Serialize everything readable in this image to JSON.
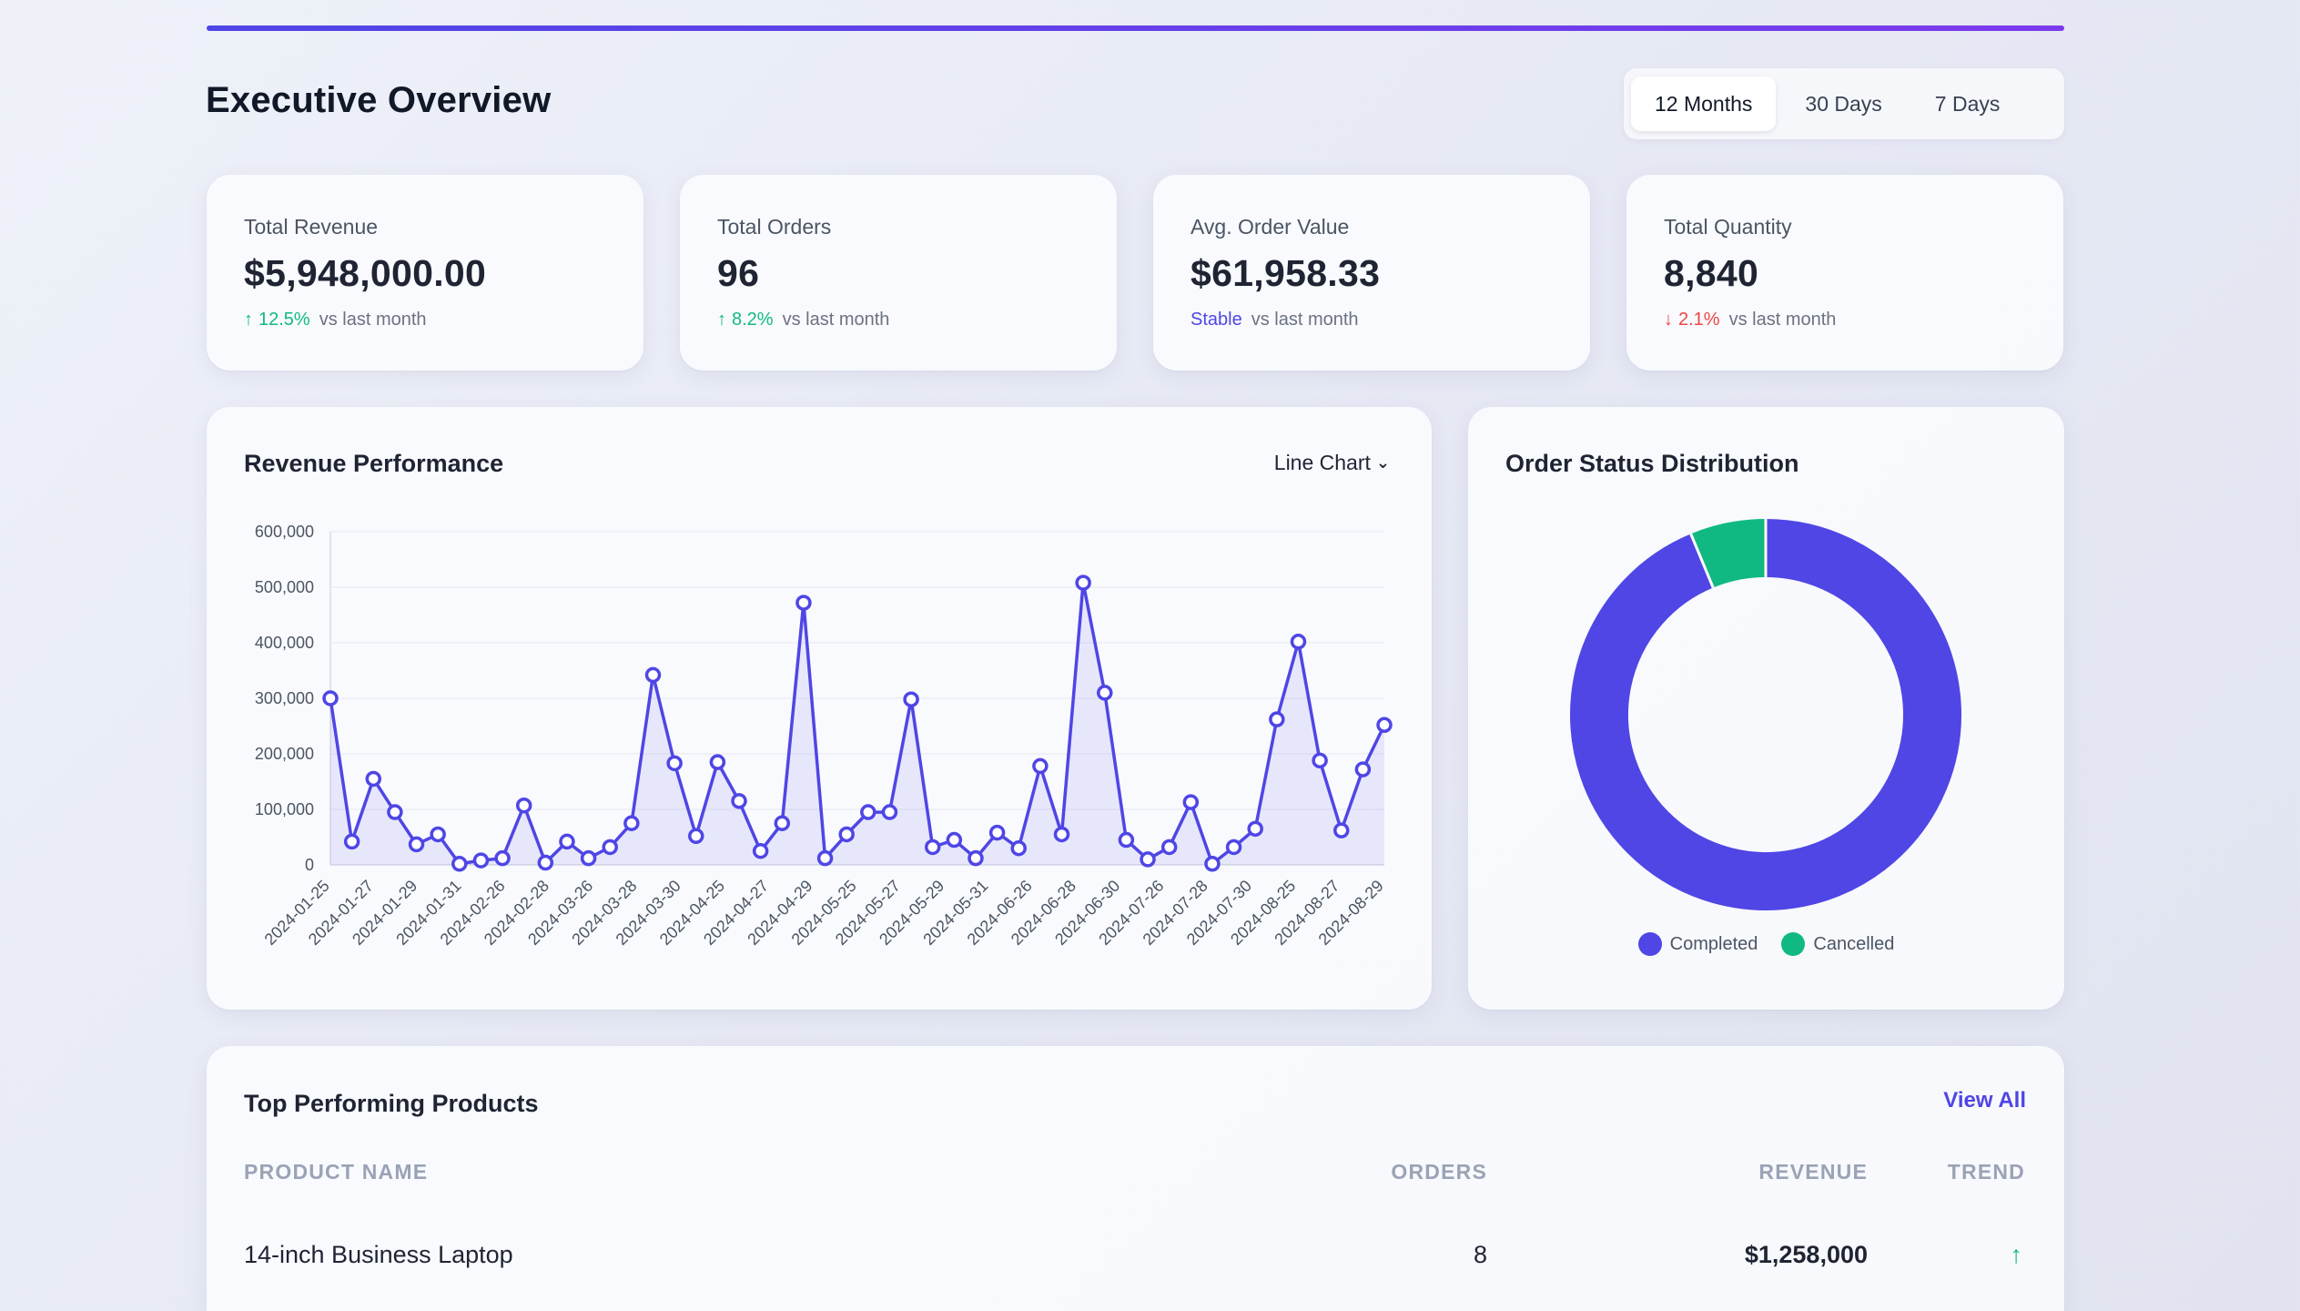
{
  "page": {
    "title": "Executive Overview"
  },
  "range": {
    "options": [
      "12 Months",
      "30 Days",
      "7 Days"
    ],
    "active": "12 Months"
  },
  "kpis": [
    {
      "label": "Total Revenue",
      "value": "$5,948,000.00",
      "trend_arrow": "↑",
      "trend_value": "12.5%",
      "trend_suffix": "vs last month",
      "direction": "up"
    },
    {
      "label": "Total Orders",
      "value": "96",
      "trend_arrow": "↑",
      "trend_value": "8.2%",
      "trend_suffix": "vs last month",
      "direction": "up"
    },
    {
      "label": "Avg. Order Value",
      "value": "$61,958.33",
      "trend_arrow": "",
      "trend_value": "Stable",
      "trend_suffix": "vs last month",
      "direction": "neutral"
    },
    {
      "label": "Total Quantity",
      "value": "8,840",
      "trend_arrow": "↓",
      "trend_value": "2.1%",
      "trend_suffix": "vs last month",
      "direction": "down"
    }
  ],
  "revenue": {
    "title": "Revenue Performance",
    "chart_type_label": "Line Chart"
  },
  "status": {
    "title": "Order Status Distribution",
    "legend": [
      "Completed",
      "Cancelled"
    ]
  },
  "products": {
    "title": "Top Performing Products",
    "view_all": "View All",
    "columns": [
      "PRODUCT NAME",
      "ORDERS",
      "REVENUE",
      "TREND"
    ],
    "rows": [
      {
        "name": "14-inch Business Laptop",
        "orders": "8",
        "revenue": "$1,258,000",
        "trend": "↑"
      }
    ]
  },
  "chart_data": [
    {
      "type": "line",
      "title": "Revenue Performance",
      "xlabel": "",
      "ylabel": "",
      "ylim": [
        0,
        600000
      ],
      "y_ticks": [
        0,
        100000,
        200000,
        300000,
        400000,
        500000,
        600000
      ],
      "y_tick_labels": [
        "0",
        "100,000",
        "200,000",
        "300,000",
        "400,000",
        "500,000",
        "600,000"
      ],
      "grid": true,
      "area_fill": true,
      "color": "#4f46e5",
      "x_tick_labels": [
        "2024-01-25",
        "2024-01-27",
        "2024-01-29",
        "2024-01-31",
        "2024-02-26",
        "2024-02-28",
        "2024-03-26",
        "2024-03-28",
        "2024-03-30",
        "2024-04-25",
        "2024-04-27",
        "2024-04-29",
        "2024-05-25",
        "2024-05-27",
        "2024-05-29",
        "2024-05-31",
        "2024-06-26",
        "2024-06-28",
        "2024-06-30",
        "2024-07-26",
        "2024-07-28",
        "2024-07-30",
        "2024-08-25",
        "2024-08-27",
        "2024-08-29"
      ],
      "series": [
        {
          "values": [
            300000,
            42000,
            155000,
            95000,
            37000,
            55000,
            2000,
            8000,
            12000,
            107000,
            4000,
            42000,
            12000,
            32000,
            75000,
            342000,
            183000,
            52000,
            185000,
            115000,
            25000,
            75000,
            472000,
            12000,
            55000,
            95000,
            95000,
            298000,
            32000,
            45000,
            12000,
            58000,
            30000,
            178000,
            55000,
            508000,
            310000,
            45000,
            10000,
            32000,
            113000,
            2000,
            32000,
            65000,
            262000,
            402000,
            188000,
            62000,
            172000,
            252000
          ]
        }
      ]
    },
    {
      "type": "pie",
      "title": "Order Status Distribution",
      "donut": true,
      "categories": [
        "Completed",
        "Cancelled"
      ],
      "values": [
        90,
        6
      ],
      "colors": [
        "#4f46e5",
        "#10b981"
      ]
    }
  ]
}
